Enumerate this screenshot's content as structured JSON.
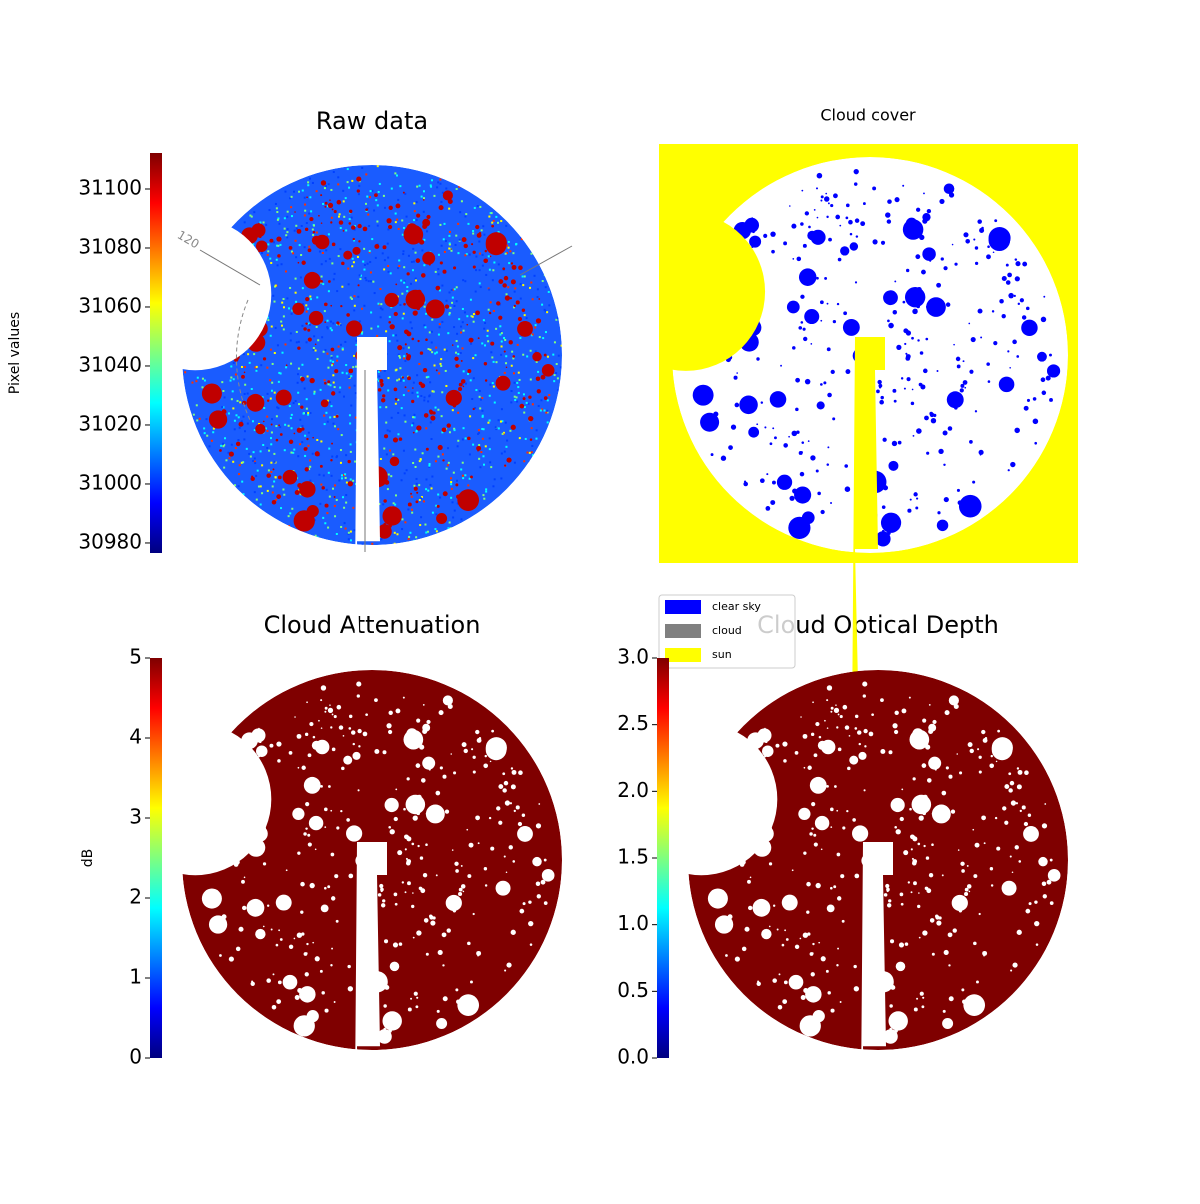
{
  "chart_data": [
    {
      "type": "image",
      "title": "Raw data",
      "colormap": "jet",
      "colorbar_label": "Pixel values",
      "clim": [
        30976.6,
        31112.2
      ],
      "cticks": [
        30980,
        31000,
        31020,
        31040,
        31060,
        31080,
        31100
      ],
      "annotations": [
        "120"
      ]
    },
    {
      "type": "mask",
      "title": "Cloud cover",
      "background": "#ffff00",
      "legend": [
        {
          "name": "clear sky",
          "color": "#0000ff"
        },
        {
          "name": "cloud",
          "color": "#808080"
        },
        {
          "name": "sun",
          "color": "#ffff00"
        }
      ]
    },
    {
      "type": "image",
      "title": "Cloud Attenuation",
      "colormap": "jet",
      "colorbar_label": "dB",
      "clim": [
        0,
        5
      ],
      "cticks": [
        0,
        1,
        2,
        3,
        4,
        5
      ]
    },
    {
      "type": "image",
      "title": "Cloud Optical Depth",
      "colormap": "jet",
      "clim": [
        0,
        3
      ],
      "cticks": [
        {
          "value": 0,
          "label": "0.0"
        },
        {
          "value": 0.5,
          "label": "0.5"
        },
        {
          "value": 1,
          "label": "1.0"
        },
        {
          "value": 1.5,
          "label": "1.5"
        },
        {
          "value": 2,
          "label": "2.0"
        },
        {
          "value": 2.5,
          "label": "2.5"
        },
        {
          "value": 3,
          "label": "3.0"
        }
      ]
    }
  ]
}
